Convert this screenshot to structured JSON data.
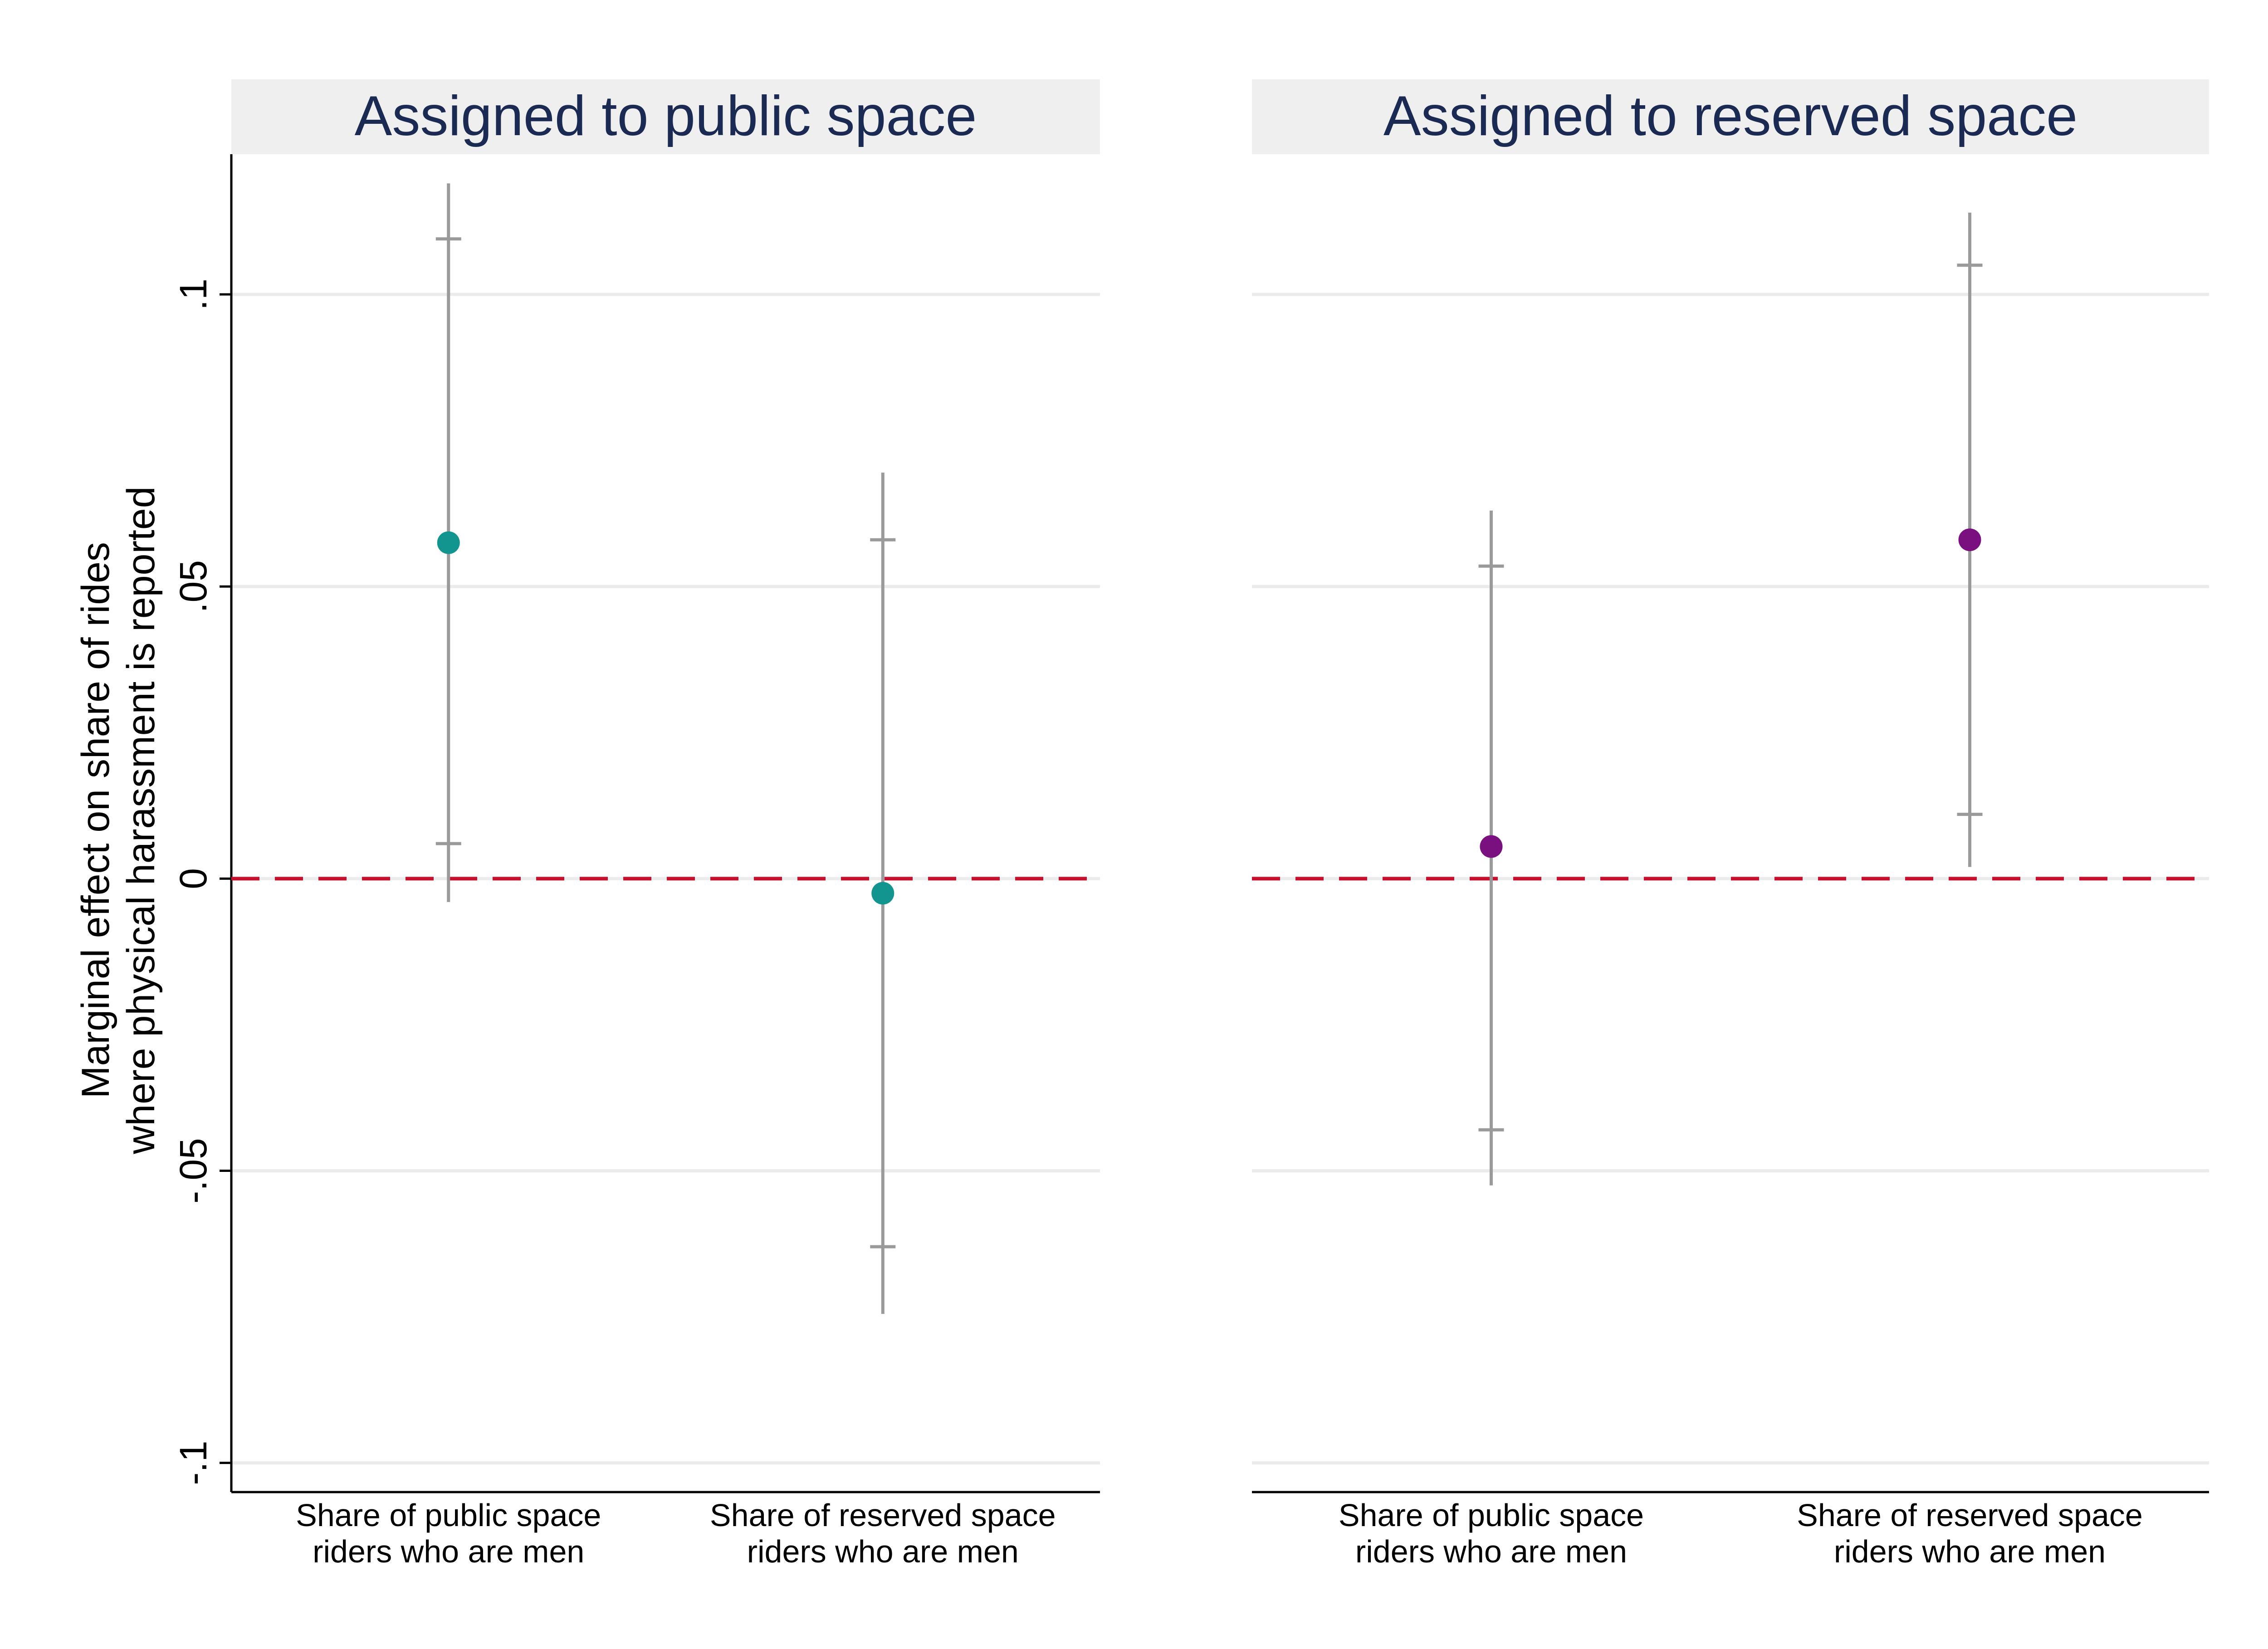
{
  "chart_data": {
    "type": "scatter",
    "ylabel": [
      "Marginal effect on share of rides",
      "where physical harassment is reported"
    ],
    "ylim": [
      -0.105,
      0.124
    ],
    "yticks": [
      {
        "value": 0.1,
        "label": ".1"
      },
      {
        "value": 0.05,
        "label": ".05"
      },
      {
        "value": 0,
        "label": "0"
      },
      {
        "value": -0.05,
        "label": "-.05"
      },
      {
        "value": -0.1,
        "label": "-.1"
      }
    ],
    "grid": true,
    "reference_line": {
      "y": 0,
      "style": "dashed",
      "color": "#c8102e"
    },
    "ci_color": "#9a9a9a",
    "panels": [
      {
        "title": "Assigned to public space",
        "marker_color": "#12958e",
        "categories": [
          [
            "Share of public space",
            "riders who are men"
          ],
          [
            "Share of reserved space",
            "riders who are men"
          ]
        ],
        "points": [
          {
            "estimate": 0.0575,
            "ci90": [
              0.006,
              0.1095
            ],
            "ci95": [
              -0.004,
              0.119
            ]
          },
          {
            "estimate": -0.0025,
            "ci90": [
              -0.063,
              0.058
            ],
            "ci95": [
              -0.0745,
              0.0695
            ]
          }
        ]
      },
      {
        "title": "Assigned to reserved space",
        "marker_color": "#7a1080",
        "categories": [
          [
            "Share of public space",
            "riders who are men"
          ],
          [
            "Share of reserved space",
            "riders who are men"
          ]
        ],
        "points": [
          {
            "estimate": 0.0055,
            "ci90": [
              -0.043,
              0.0535
            ],
            "ci95": [
              -0.0525,
              0.063
            ]
          },
          {
            "estimate": 0.058,
            "ci90": [
              0.011,
              0.105
            ],
            "ci95": [
              0.002,
              0.114
            ]
          }
        ]
      }
    ]
  }
}
